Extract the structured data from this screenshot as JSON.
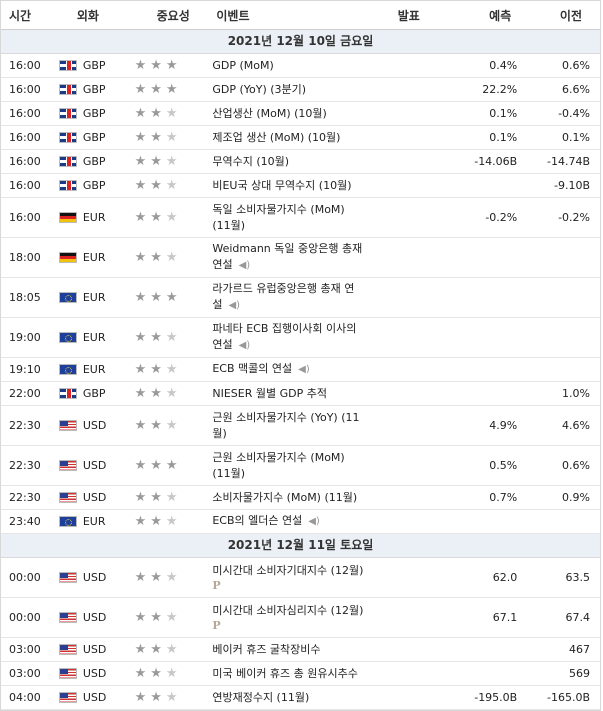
{
  "header": {
    "time": "시간",
    "currency": "외화",
    "importance": "중요성",
    "event": "이벤트",
    "actual": "발표",
    "forecast": "예측",
    "previous": "이전"
  },
  "days": [
    {
      "label": "2021년 12월 10일 금요일",
      "rows": [
        {
          "time": "16:00",
          "flag": "gbp",
          "cur": "GBP",
          "stars": 3,
          "lines": [
            "GDP (MoM)"
          ],
          "speech": false,
          "actual": "",
          "forecast": "0.4%",
          "previous": "0.6%",
          "h": 24
        },
        {
          "time": "16:00",
          "flag": "gbp",
          "cur": "GBP",
          "stars": 3,
          "lines": [
            "GDP (YoY) (3분기)"
          ],
          "speech": false,
          "actual": "",
          "forecast": "22.2%",
          "previous": "6.6%",
          "h": 24
        },
        {
          "time": "16:00",
          "flag": "gbp",
          "cur": "GBP",
          "stars": 2,
          "lines": [
            "산업생산 (MoM) (10월)"
          ],
          "speech": false,
          "actual": "",
          "forecast": "0.1%",
          "previous": "-0.4%",
          "h": 24
        },
        {
          "time": "16:00",
          "flag": "gbp",
          "cur": "GBP",
          "stars": 2,
          "lines": [
            "제조업 생산 (MoM) (10월)"
          ],
          "speech": false,
          "actual": "",
          "forecast": "0.1%",
          "previous": "0.1%",
          "h": 24
        },
        {
          "time": "16:00",
          "flag": "gbp",
          "cur": "GBP",
          "stars": 2,
          "lines": [
            "무역수지 (10월)"
          ],
          "speech": false,
          "actual": "",
          "forecast": "-14.06B",
          "previous": "-14.74B",
          "h": 24
        },
        {
          "time": "16:00",
          "flag": "gbp",
          "cur": "GBP",
          "stars": 2,
          "lines": [
            "비EU국 상대 무역수지 (10월)"
          ],
          "speech": false,
          "actual": "",
          "forecast": "",
          "previous": "-9.10B",
          "h": 24
        },
        {
          "time": "16:00",
          "flag": "deu",
          "cur": "EUR",
          "stars": 2,
          "lines": [
            "독일 소비자물가지수 (MoM)",
            "(11월)"
          ],
          "speech": false,
          "actual": "",
          "forecast": "-0.2%",
          "previous": "-0.2%",
          "h": 40
        },
        {
          "time": "18:00",
          "flag": "deu",
          "cur": "EUR",
          "stars": 2,
          "lines": [
            "Weidmann 독일 중앙은행 총재",
            "연설"
          ],
          "speech": true,
          "actual": "",
          "forecast": "",
          "previous": "",
          "h": 40
        },
        {
          "time": "18:05",
          "flag": "eur",
          "cur": "EUR",
          "stars": 3,
          "lines": [
            "라가르드 유럽중앙은행 총재 연",
            "설"
          ],
          "speech": true,
          "actual": "",
          "forecast": "",
          "previous": "",
          "h": 40
        },
        {
          "time": "19:00",
          "flag": "eur",
          "cur": "EUR",
          "stars": 2,
          "lines": [
            "파네타 ECB 집행이사회 이사의",
            "연설"
          ],
          "speech": true,
          "actual": "",
          "forecast": "",
          "previous": "",
          "h": 40
        },
        {
          "time": "19:10",
          "flag": "eur",
          "cur": "EUR",
          "stars": 2,
          "lines": [
            "ECB 맥콜의 연설"
          ],
          "speech": true,
          "actual": "",
          "forecast": "",
          "previous": "",
          "h": 24
        },
        {
          "time": "22:00",
          "flag": "gbp",
          "cur": "GBP",
          "stars": 2,
          "lines": [
            "NIESER 월별 GDP 추적"
          ],
          "speech": false,
          "actual": "",
          "forecast": "",
          "previous": "1.0%",
          "h": 24
        },
        {
          "time": "22:30",
          "flag": "usd",
          "cur": "USD",
          "stars": 2,
          "lines": [
            "근원 소비자물가지수 (YoY) (11",
            "월)"
          ],
          "speech": false,
          "actual": "",
          "forecast": "4.9%",
          "previous": "4.6%",
          "h": 40
        },
        {
          "time": "22:30",
          "flag": "usd",
          "cur": "USD",
          "stars": 3,
          "lines": [
            "근원 소비자물가지수 (MoM)",
            "(11월)"
          ],
          "speech": false,
          "actual": "",
          "forecast": "0.5%",
          "previous": "0.6%",
          "h": 40
        },
        {
          "time": "22:30",
          "flag": "usd",
          "cur": "USD",
          "stars": 2,
          "lines": [
            "소비자물가지수 (MoM) (11월)"
          ],
          "speech": false,
          "actual": "",
          "forecast": "0.7%",
          "previous": "0.9%",
          "h": 24
        },
        {
          "time": "23:40",
          "flag": "eur",
          "cur": "EUR",
          "stars": 2,
          "lines": [
            "ECB의 엘더슨 연설"
          ],
          "speech": true,
          "actual": "",
          "forecast": "",
          "previous": "",
          "h": 24
        }
      ]
    },
    {
      "label": "2021년 12월 11일 토요일",
      "rows": [
        {
          "time": "00:00",
          "flag": "usd",
          "cur": "USD",
          "stars": 2,
          "lines": [
            "미시간대 소비자기대지수 (12월)"
          ],
          "prelim": "P",
          "speech": false,
          "actual": "",
          "forecast": "62.0",
          "previous": "63.5",
          "h": 40
        },
        {
          "time": "00:00",
          "flag": "usd",
          "cur": "USD",
          "stars": 2,
          "lines": [
            "미시간대 소비자심리지수 (12월)"
          ],
          "prelim": "P",
          "speech": false,
          "actual": "",
          "forecast": "67.1",
          "previous": "67.4",
          "h": 40
        },
        {
          "time": "03:00",
          "flag": "usd",
          "cur": "USD",
          "stars": 2,
          "lines": [
            "베이커 휴즈 굴착장비수"
          ],
          "speech": false,
          "actual": "",
          "forecast": "",
          "previous": "467",
          "h": 24
        },
        {
          "time": "03:00",
          "flag": "usd",
          "cur": "USD",
          "stars": 2,
          "lines": [
            "미국 베이커 휴즈 총 원유시추수"
          ],
          "speech": false,
          "actual": "",
          "forecast": "",
          "previous": "569",
          "h": 24
        },
        {
          "time": "04:00",
          "flag": "usd",
          "cur": "USD",
          "stars": 2,
          "lines": [
            "연방재정수지 (11월)"
          ],
          "speech": false,
          "actual": "",
          "forecast": "-195.0B",
          "previous": "-165.0B",
          "h": 24
        }
      ]
    }
  ],
  "icons": {
    "speech": "speaker-icon",
    "prelim": "preliminary-icon",
    "star": "star-icon"
  }
}
